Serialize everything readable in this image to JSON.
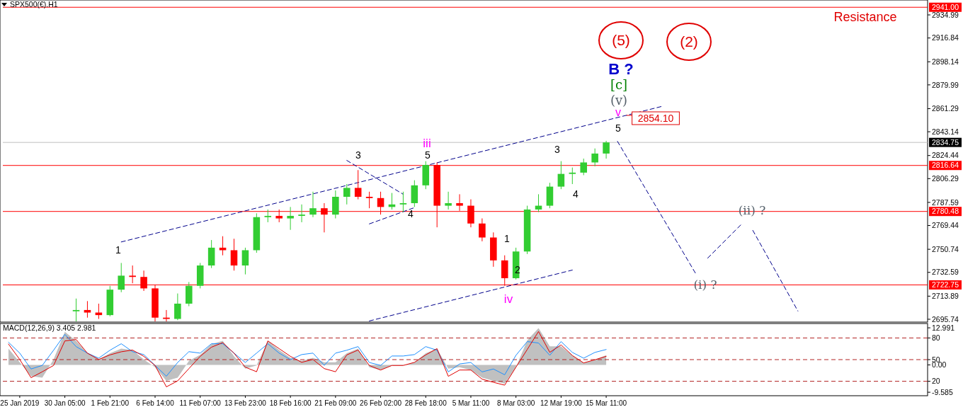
{
  "chart_data": [
    {
      "type": "candlestick",
      "title": "SPX500(€).H1",
      "ylim": [
        2693.5,
        2946.7
      ],
      "tick_labels": "y",
      "line_style": "dashed",
      "yticks": [
        2695.74,
        2713.89,
        2732.59,
        2750.74,
        2769.44,
        2787.59,
        2806.29,
        2824.44,
        2843.14,
        2861.29,
        2879.99,
        2898.14,
        2916.84,
        2934.99
      ],
      "categories": [
        null,
        null,
        null,
        null,
        null,
        null,
        null,
        null,
        null,
        null,
        null,
        null,
        null,
        null,
        null,
        null,
        null,
        null,
        null,
        null,
        null,
        null,
        null,
        null,
        null,
        null,
        null,
        null,
        null,
        null,
        null,
        null,
        null,
        null,
        null,
        null,
        null,
        null,
        null,
        null,
        null,
        null,
        null,
        null,
        null,
        null,
        null,
        null,
        null,
        null,
        null,
        null,
        null,
        null,
        null,
        null,
        null,
        null,
        null,
        null,
        null,
        null,
        null,
        null,
        null,
        null,
        null,
        null,
        null,
        null,
        null,
        null,
        null,
        null,
        null,
        null,
        null,
        null,
        null,
        null,
        null,
        null
      ],
      "ohlc": [
        null,
        null,
        null,
        null,
        null,
        null,
        [
          2702,
          2712,
          2694,
          2703
        ],
        [
          2703,
          2710,
          2697,
          2701
        ],
        [
          2701,
          2708,
          2696,
          2699
        ],
        [
          2699,
          2722,
          2698,
          2719
        ],
        [
          2719,
          2740,
          2717,
          2730
        ],
        [
          2730,
          2738,
          2724,
          2729
        ],
        [
          2729,
          2734,
          2718,
          2720
        ],
        [
          2720,
          2723,
          2694,
          2697
        ],
        [
          2697,
          2703,
          2694,
          2696
        ],
        [
          2696,
          2716,
          2695,
          2708
        ],
        [
          2708,
          2725,
          2706,
          2722
        ],
        [
          2722,
          2740,
          2720,
          2738
        ],
        [
          2738,
          2758,
          2736,
          2752
        ],
        [
          2752,
          2761,
          2746,
          2750
        ],
        [
          2750,
          2759,
          2734,
          2738
        ],
        [
          2738,
          2752,
          2731,
          2750
        ],
        [
          2750,
          2779,
          2748,
          2776
        ],
        [
          2776,
          2782,
          2772,
          2777
        ],
        [
          2777,
          2782,
          2772,
          2775
        ],
        [
          2775,
          2784,
          2766,
          2777
        ],
        [
          2777,
          2786,
          2772,
          2778
        ],
        [
          2778,
          2796,
          2776,
          2783
        ],
        [
          2783,
          2787,
          2764,
          2778
        ],
        [
          2778,
          2797,
          2775,
          2792
        ],
        [
          2792,
          2802,
          2786,
          2799
        ],
        [
          2799,
          2813,
          2790,
          2792
        ],
        [
          2792,
          2796,
          2783,
          2791
        ],
        [
          2791,
          2796,
          2778,
          2784
        ],
        [
          2784,
          2795,
          2782,
          2786
        ],
        [
          2786,
          2796,
          2780,
          2787
        ],
        [
          2787,
          2805,
          2784,
          2801
        ],
        [
          2801,
          2820,
          2798,
          2817
        ],
        [
          2817,
          2819,
          2768,
          2785
        ],
        [
          2785,
          2796,
          2782,
          2787
        ],
        [
          2787,
          2794,
          2781,
          2785
        ],
        [
          2785,
          2790,
          2768,
          2771
        ],
        [
          2771,
          2775,
          2757,
          2760
        ],
        [
          2760,
          2764,
          2737,
          2742
        ],
        [
          2742,
          2746,
          2722,
          2728
        ],
        [
          2728,
          2752,
          2727,
          2749
        ],
        [
          2749,
          2785,
          2747,
          2782
        ],
        [
          2782,
          2794,
          2780,
          2785
        ],
        [
          2785,
          2803,
          2783,
          2800
        ],
        [
          2800,
          2820,
          2798,
          2810
        ],
        [
          2810,
          2815,
          2802,
          2811
        ],
        [
          2811,
          2822,
          2809,
          2819
        ],
        [
          2819,
          2830,
          2816,
          2826
        ],
        [
          2826,
          2836,
          2822,
          2834.75
        ],
        null,
        null,
        null,
        null,
        null,
        null,
        null,
        null,
        null,
        null,
        null,
        null,
        null,
        null,
        null,
        null,
        null,
        null,
        null,
        null,
        null,
        null,
        null,
        null,
        null,
        null,
        null,
        null
      ],
      "series": [
        {
          "type": "line",
          "color": "#00008b",
          "values": [
            null,
            null,
            null,
            null,
            null,
            null,
            null,
            null,
            null,
            null,
            2756.5,
            null,
            null,
            null,
            null,
            null,
            null,
            null,
            null,
            null,
            null,
            null,
            null,
            null,
            null,
            null,
            null,
            null,
            null,
            null,
            null,
            null,
            null,
            null,
            null,
            null,
            null,
            null,
            null,
            null,
            null,
            null,
            null,
            null,
            null,
            null,
            null,
            null,
            null,
            null,
            null,
            null,
            null,
            null,
            null,
            null,
            null,
            null,
            2863.2,
            null,
            null,
            null,
            null,
            null,
            null,
            null,
            null,
            null,
            null,
            null,
            null,
            null,
            null,
            null,
            null,
            null,
            null,
            null,
            null,
            null,
            null,
            null
          ]
        },
        {
          "type": "line",
          "color": "#00008b",
          "values": [
            null,
            null,
            null,
            null,
            null,
            null,
            null,
            null,
            null,
            null,
            null,
            null,
            null,
            null,
            null,
            null,
            null,
            null,
            null,
            null,
            null,
            null,
            null,
            null,
            null,
            null,
            null,
            null,
            null,
            null,
            null,
            null,
            2694.4,
            null,
            null,
            null,
            null,
            null,
            null,
            null,
            null,
            null,
            null,
            null,
            null,
            null,
            null,
            null,
            null,
            null,
            2734.4,
            null,
            null,
            null,
            null,
            null,
            null,
            null,
            null,
            null,
            null,
            null,
            null,
            null,
            null,
            null,
            null,
            null,
            null,
            null,
            null,
            null,
            null,
            null,
            null,
            null,
            null,
            null,
            null,
            null,
            null,
            null
          ]
        },
        {
          "type": "line",
          "color": "#00008b",
          "values": [
            null,
            null,
            null,
            null,
            null,
            null,
            null,
            null,
            null,
            null,
            null,
            null,
            null,
            null,
            null,
            null,
            null,
            null,
            null,
            null,
            null,
            null,
            null,
            null,
            null,
            null,
            null,
            null,
            null,
            null,
            null,
            null,
            2770.7,
            null,
            null,
            null,
            2783.5,
            null,
            null,
            null,
            null,
            null,
            null,
            null,
            null,
            null,
            null,
            null,
            null,
            null,
            null,
            null,
            null,
            null,
            null,
            null,
            null,
            null,
            null,
            null,
            null,
            null,
            null,
            null,
            null,
            null,
            null,
            null,
            null,
            null,
            null,
            null,
            null,
            null,
            null,
            null,
            null,
            null,
            null,
            null,
            null,
            null
          ]
        },
        {
          "type": "line",
          "color": "#00008b",
          "values": [
            null,
            null,
            null,
            null,
            null,
            null,
            null,
            null,
            null,
            null,
            null,
            null,
            null,
            null,
            null,
            null,
            null,
            null,
            null,
            null,
            null,
            null,
            null,
            null,
            null,
            null,
            null,
            null,
            null,
            null,
            2820.6,
            null,
            null,
            null,
            null,
            2794.0,
            null,
            null,
            null,
            null,
            null,
            null,
            null,
            null,
            null,
            null,
            null,
            null,
            null,
            null,
            null,
            null,
            null,
            null,
            null,
            null,
            null,
            null,
            null,
            null,
            null,
            null,
            null,
            null,
            null,
            null,
            null,
            null,
            null,
            null,
            null,
            null,
            null,
            null,
            null,
            null,
            null,
            null,
            null,
            null,
            null,
            null
          ]
        },
        {
          "type": "line",
          "color": "#00008b",
          "values": [
            null,
            null,
            null,
            null,
            null,
            null,
            null,
            null,
            null,
            null,
            null,
            null,
            null,
            null,
            null,
            null,
            null,
            null,
            null,
            null,
            null,
            null,
            null,
            null,
            null,
            null,
            null,
            null,
            null,
            null,
            null,
            null,
            null,
            null,
            null,
            null,
            null,
            null,
            null,
            null,
            null,
            null,
            null,
            null,
            null,
            null,
            null,
            null,
            null,
            null,
            null,
            null,
            null,
            null,
            2835.6,
            null,
            null,
            null,
            null,
            null,
            null,
            2730.7,
            null,
            null,
            null,
            null,
            null,
            null,
            null,
            null,
            null,
            null,
            null,
            null,
            null,
            null,
            null,
            null,
            null,
            null,
            null,
            null
          ]
        },
        {
          "type": "line",
          "color": "#00008b",
          "values": [
            null,
            null,
            null,
            null,
            null,
            null,
            null,
            null,
            null,
            null,
            null,
            null,
            null,
            null,
            null,
            null,
            null,
            null,
            null,
            null,
            null,
            null,
            null,
            null,
            null,
            null,
            null,
            null,
            null,
            null,
            null,
            null,
            null,
            null,
            null,
            null,
            null,
            null,
            null,
            null,
            null,
            null,
            null,
            null,
            null,
            null,
            null,
            null,
            null,
            null,
            null,
            null,
            null,
            null,
            null,
            null,
            null,
            null,
            null,
            null,
            null,
            null,
            2743.8,
            null,
            null,
            2770.5,
            null,
            null,
            null,
            null,
            null,
            null,
            null,
            null,
            null,
            null,
            null,
            null,
            null,
            null,
            null,
            null
          ]
        },
        {
          "type": "line",
          "color": "#00008b",
          "values": [
            null,
            null,
            null,
            null,
            null,
            null,
            null,
            null,
            null,
            null,
            null,
            null,
            null,
            null,
            null,
            null,
            null,
            null,
            null,
            null,
            null,
            null,
            null,
            null,
            null,
            null,
            null,
            null,
            null,
            null,
            null,
            null,
            null,
            null,
            null,
            null,
            null,
            null,
            null,
            null,
            null,
            null,
            null,
            null,
            null,
            null,
            null,
            null,
            null,
            null,
            null,
            null,
            null,
            null,
            null,
            null,
            null,
            null,
            null,
            null,
            null,
            null,
            null,
            null,
            null,
            null,
            2765.6,
            null,
            null,
            null,
            2702.2,
            null,
            null,
            null,
            null,
            null,
            null,
            null,
            null,
            null,
            null,
            null
          ]
        }
      ],
      "ref_lines": [
        {
          "axis": "y",
          "value": 2941,
          "label": "2941.00",
          "color": "#ff0000"
        },
        {
          "axis": "y",
          "value": 2834.75,
          "label": "2834.75",
          "color": "#c0c0c0"
        },
        {
          "axis": "y",
          "value": 2816.64,
          "label": "2816.64",
          "color": "#ff0000"
        },
        {
          "axis": "y",
          "value": 2780.48,
          "label": "2780.48",
          "color": "#ff0000"
        },
        {
          "axis": "y",
          "value": 2722.75,
          "label": "2722.75",
          "color": "#ff0000"
        }
      ],
      "annotations": [
        "1",
        "3",
        "4",
        "5",
        "iii",
        "1",
        "2",
        "iv",
        "3",
        "4",
        "5",
        "v",
        "(v)",
        "[c]",
        "B ?",
        "(5)",
        "(2)",
        "(ii) ?",
        "(i) ?",
        "2854.10",
        "Resistance"
      ]
    },
    {
      "type": "line",
      "title": "MACD(12,26,9) 3.405 2.981",
      "ylim": [
        -10.8,
        14.5
      ],
      "y2lim": [
        0,
        100
      ],
      "categories": [
        null,
        "25 Jan 2019",
        null,
        null,
        null,
        "30 Jan 05:00",
        null,
        null,
        null,
        "1 Feb 21:00",
        null,
        null,
        null,
        "6 Feb 14:00",
        null,
        null,
        null,
        "11 Feb 07:00",
        null,
        null,
        null,
        "13 Feb 23:00",
        null,
        null,
        null,
        "18 Feb 16:00",
        null,
        null,
        null,
        "21 Feb 09:00",
        null,
        null,
        null,
        "26 Feb 02:00",
        null,
        null,
        null,
        "28 Feb 18:00",
        null,
        null,
        null,
        "5 Mar 11:00",
        null,
        null,
        null,
        "8 Mar 03:00",
        null,
        null,
        null,
        "12 Mar 19:00",
        null,
        null,
        null,
        "15 Mar 11:00",
        null,
        null,
        null,
        null,
        null,
        null,
        null,
        null,
        null,
        null,
        null,
        null,
        null,
        null,
        null,
        null,
        null,
        null,
        null,
        null,
        null,
        null,
        null,
        null,
        null,
        null,
        null,
        null
      ],
      "yticks": [
        -9.585,
        {
          "value": 0,
          "label": "0.00"
        },
        12.991
      ],
      "y2ticks": [
        20,
        50,
        80
      ],
      "series": [
        {
          "type": "area",
          "color": "#c0c0c0",
          "values": [
            5.7,
            0.9,
            -4.0,
            -4.5,
            1.9,
            11.6,
            8.4,
            4.1,
            1.9,
            4.1,
            5.7,
            5.2,
            1.9,
            -0.8,
            -5.6,
            -4.5,
            1.4,
            3.5,
            7.3,
            8.4,
            3.0,
            -1.3,
            -0.2,
            8.4,
            5.2,
            2.5,
            1.4,
            2.5,
            0.9,
            0.9,
            4.1,
            5.7,
            -0.8,
            -1.8,
            -0.2,
            -0.2,
            0.9,
            4.1,
            5.7,
            -1.3,
            -0.8,
            -1.8,
            -4.5,
            -5.6,
            -6.6,
            -0.8,
            8.6,
            12.9,
            6.5,
            6.5,
            3.3,
            0.7,
            1.8,
            3.4,
            null,
            null,
            null,
            null,
            null,
            null,
            null,
            null,
            null,
            null,
            null,
            null,
            null,
            null,
            null,
            null,
            null,
            null,
            null,
            null,
            null,
            null,
            null,
            null,
            null,
            null,
            null,
            null
          ]
        },
        {
          "type": "line",
          "color": "#1e90ff",
          "axis": "y2",
          "values": [
            74,
            59,
            37,
            42,
            63,
            85,
            68,
            59,
            52,
            63,
            72,
            61,
            57,
            42,
            27,
            46,
            61,
            59,
            72,
            72,
            59,
            46,
            59,
            72,
            59,
            50,
            57,
            59,
            42,
            59,
            63,
            68,
            46,
            42,
            55,
            55,
            57,
            68,
            63,
            33,
            44,
            46,
            33,
            37,
            29,
            56,
            75,
            73,
            56,
            75,
            60,
            52,
            60,
            64,
            null,
            null,
            null,
            null,
            null,
            null,
            null,
            null,
            null,
            null,
            null,
            null,
            null,
            null,
            null,
            null,
            null,
            null,
            null,
            null,
            null,
            null,
            null,
            null,
            null,
            null,
            null,
            null
          ]
        },
        {
          "type": "line",
          "color": "#e00000",
          "values": [
            7.3,
            1.9,
            -4.5,
            -2.4,
            -0.2,
            8.4,
            8.9,
            4.1,
            1.9,
            3.5,
            4.6,
            5.2,
            3.0,
            -0.2,
            -7.7,
            -5.6,
            -1.3,
            3.0,
            6.2,
            7.8,
            4.1,
            -0.8,
            -2.4,
            8.4,
            5.7,
            3.0,
            0.9,
            1.9,
            -1.3,
            -2.4,
            3.5,
            5.2,
            -0.2,
            -1.8,
            -0.2,
            -0.2,
            0.9,
            3.5,
            5.7,
            -4.0,
            -1.8,
            -1.8,
            -5.0,
            -6.1,
            -7.1,
            -0.8,
            5.4,
            11.7,
            4.4,
            7.0,
            3.3,
            0.7,
            1.8,
            3.0,
            null,
            null,
            null,
            null,
            null,
            null,
            null,
            null,
            null,
            null,
            null,
            null,
            null,
            null,
            null,
            null,
            null,
            null,
            null,
            null,
            null,
            null,
            null,
            null,
            null,
            null,
            null,
            null
          ]
        }
      ],
      "ref_lines": [
        {
          "axis": "y2",
          "value": 80,
          "color": "#b22222",
          "line_style": "dashed"
        },
        {
          "axis": "y2",
          "value": 50,
          "color": "#b22222",
          "line_style": "dashed"
        },
        {
          "axis": "y2",
          "value": 20,
          "color": "#b22222",
          "line_style": "dashed"
        }
      ]
    }
  ]
}
